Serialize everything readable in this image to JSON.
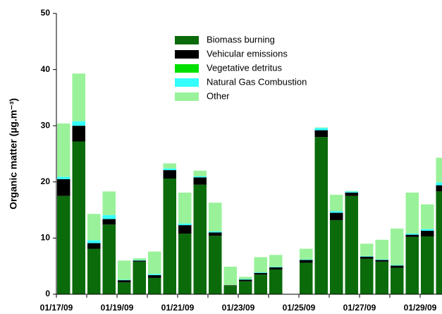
{
  "chart_data": {
    "type": "stacked-bar",
    "y_label": "Organic matter (µg.m⁻³)",
    "categories": [
      "01/17/09",
      null,
      null,
      null,
      "01/19/09",
      null,
      null,
      null,
      "01/21/09",
      null,
      null,
      null,
      "01/23/09",
      null,
      null,
      null,
      "01/25/09",
      null,
      null,
      null,
      "01/27/09",
      null,
      null,
      null,
      "01/29/09",
      null
    ],
    "series": [
      {
        "name": "Biomass burning",
        "color": "#0b6b0b",
        "values": [
          17.5,
          27.2,
          8.1,
          12.4,
          2.1,
          5.8,
          2.9,
          20.6,
          10.8,
          19.5,
          10.4,
          1.5,
          2.3,
          3.5,
          4.4,
          null,
          5.6,
          28.0,
          13.2,
          17.5,
          6.3,
          5.8,
          4.7,
          10.2,
          10.3,
          18.3
        ]
      },
      {
        "name": "Vehicular emissions",
        "color": "#000000",
        "values": [
          3.0,
          2.8,
          1.0,
          1.0,
          0.4,
          0.2,
          0.5,
          1.5,
          1.5,
          1.3,
          0.6,
          0.1,
          0.3,
          0.3,
          0.4,
          null,
          0.5,
          1.2,
          1.3,
          0.6,
          0.4,
          0.3,
          0.4,
          0.4,
          1.0,
          1.1
        ]
      },
      {
        "name": "Vegetative detritus",
        "color": "#00e000",
        "values": [
          0,
          0,
          0,
          0,
          0,
          0,
          0,
          0,
          0,
          0,
          0,
          0,
          0,
          0,
          0,
          null,
          0,
          0,
          0,
          0,
          0,
          0,
          0,
          0,
          0,
          0
        ]
      },
      {
        "name": "Natural Gas Combustion",
        "color": "#33ffff",
        "values": [
          0.4,
          0.8,
          0.5,
          0.7,
          0.1,
          0.1,
          0.2,
          0.3,
          0.3,
          0.2,
          0.2,
          0,
          0.1,
          0.1,
          0.1,
          null,
          0.1,
          0.4,
          0.3,
          0.2,
          0.1,
          0.1,
          0.1,
          0.2,
          0.3,
          0.5
        ]
      },
      {
        "name": "Other",
        "color": "#99f299",
        "values": [
          9.5,
          8.5,
          4.7,
          4.2,
          3.4,
          0.3,
          4.0,
          0.9,
          5.5,
          1.0,
          5.1,
          3.3,
          0.4,
          2.7,
          2.1,
          null,
          1.9,
          0.1,
          2.9,
          0.1,
          2.2,
          3.5,
          6.5,
          7.3,
          4.4,
          4.4
        ]
      }
    ],
    "ylim": [
      0,
      50
    ],
    "yticks": [
      0,
      10,
      20,
      30,
      40,
      50
    ]
  }
}
